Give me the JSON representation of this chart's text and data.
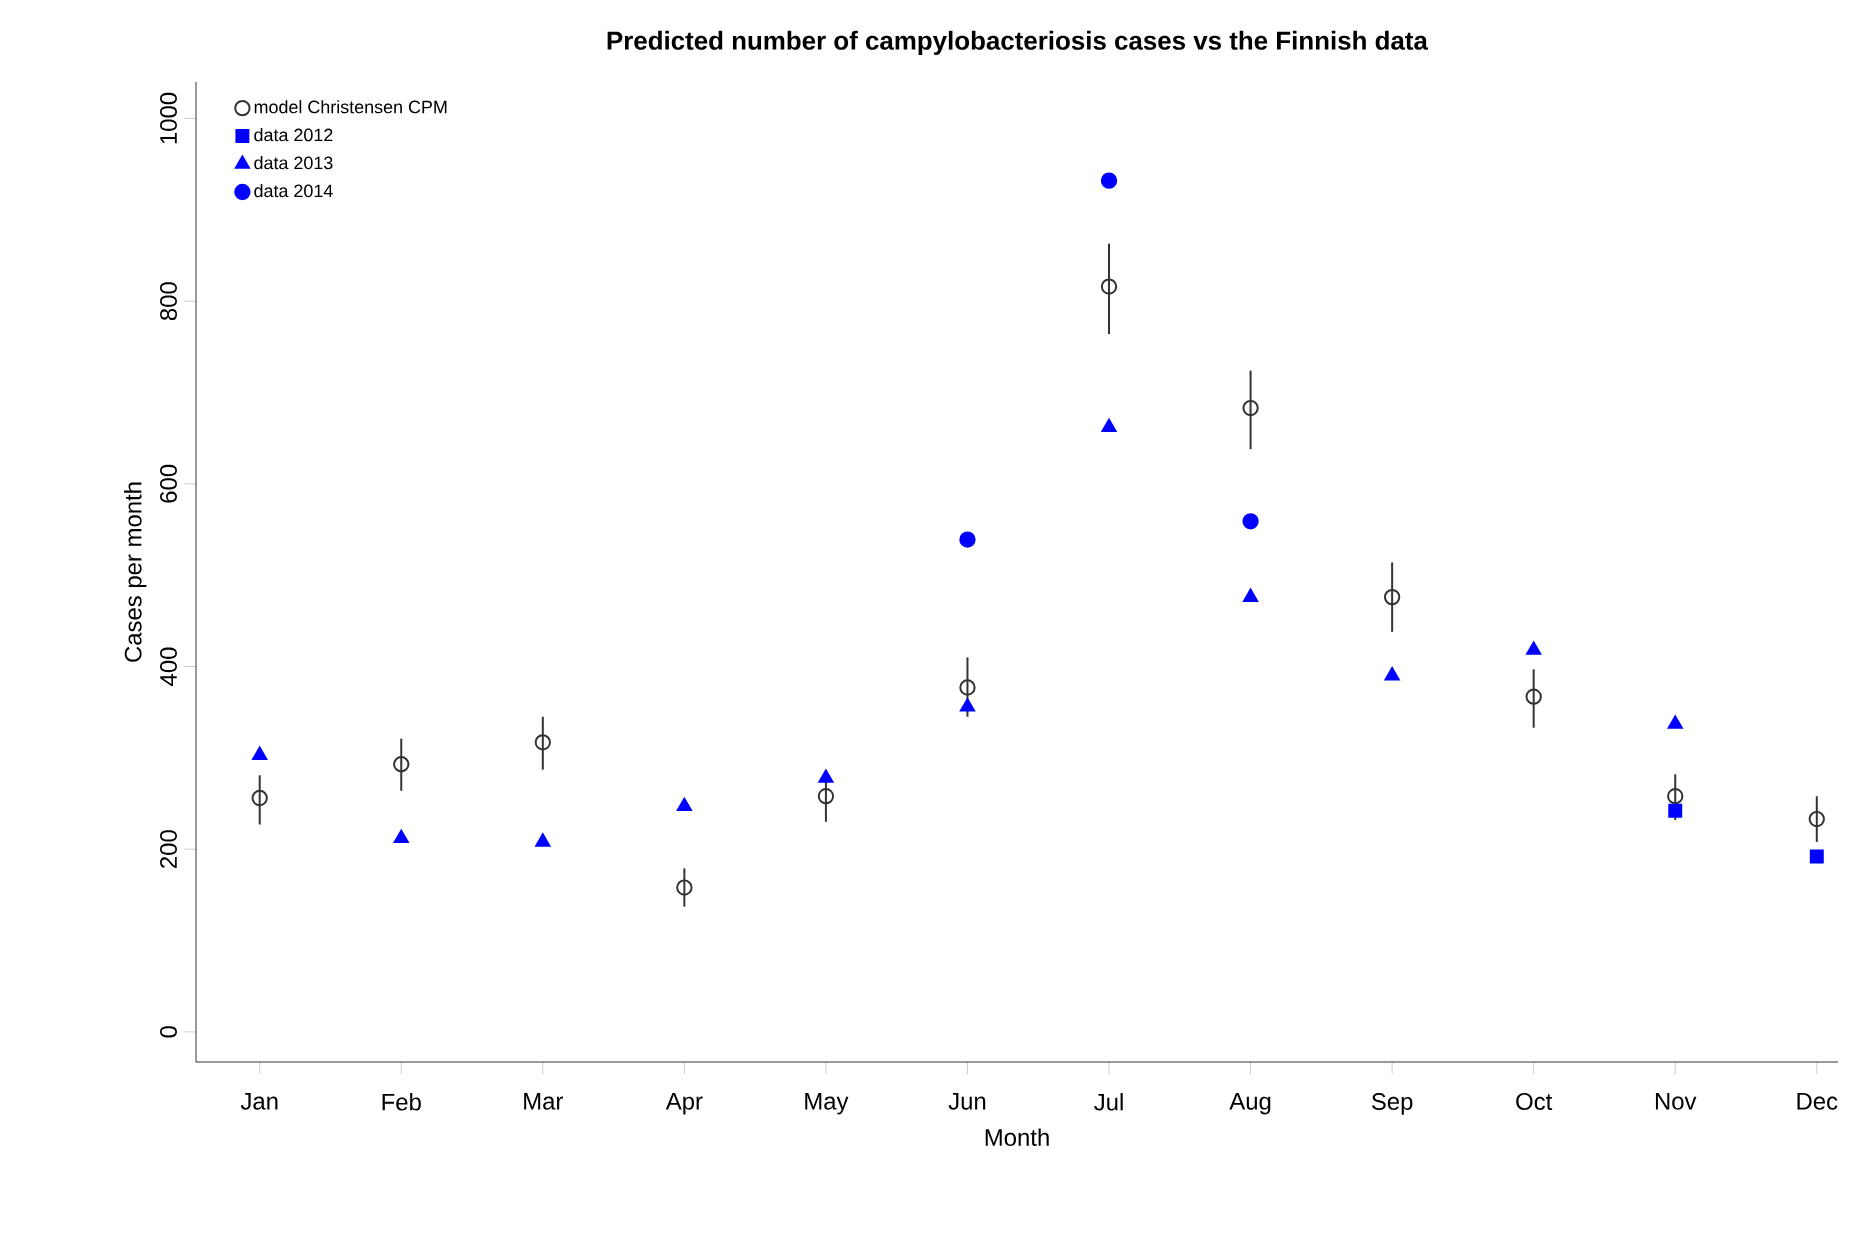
{
  "chart_data": {
    "type": "scatter",
    "title": "**Predicted number of campylobacteriosis cases vs the Finnish data**",
    "xlabel": "Month",
    "ylabel": "Cases per month",
    "categories": [
      "Jan",
      "Feb",
      "Mar",
      "Apr",
      "May",
      "Jun",
      "Jul",
      "Aug",
      "Sep",
      "Oct",
      "Nov",
      "Dec"
    ],
    "ylim": [
      -33,
      1040
    ],
    "yticks": [
      0,
      200,
      400,
      600,
      800,
      1000
    ],
    "legend": "top left",
    "grid": false,
    "series": [
      {
        "name": "model Christensen CPM",
        "color": "#333333",
        "marker": "circle_open",
        "values": [
          256,
          293,
          317,
          158,
          258,
          377,
          816,
          683,
          476,
          367,
          258,
          233
        ],
        "errors": [
          [
            227,
            281
          ],
          [
            264,
            321
          ],
          [
            287,
            345
          ],
          [
            137,
            179
          ],
          [
            230,
            283
          ],
          [
            345,
            410
          ],
          [
            764,
            863
          ],
          [
            638,
            724
          ],
          [
            438,
            514
          ],
          [
            333,
            397
          ],
          [
            232,
            282
          ],
          [
            208,
            258
          ]
        ]
      },
      {
        "name": "data 2012",
        "color": "#0000ff",
        "marker": "square",
        "values": [
          null,
          null,
          null,
          null,
          null,
          null,
          null,
          null,
          null,
          null,
          242,
          192
        ]
      },
      {
        "name": "data 2013",
        "color": "#0000ff",
        "marker": "triangle",
        "values": [
          303,
          212,
          208,
          247,
          278,
          356,
          662,
          476,
          390,
          418,
          337,
          null
        ]
      },
      {
        "name": "data 2014",
        "color": "#0000ff",
        "marker": "circle",
        "values": [
          null,
          null,
          null,
          null,
          null,
          539,
          932,
          559,
          null,
          null,
          null,
          null
        ]
      }
    ]
  }
}
